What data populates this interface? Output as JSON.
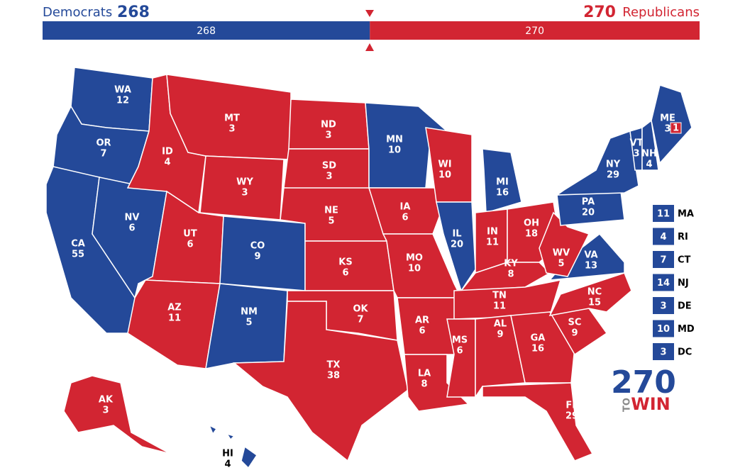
{
  "header": {
    "dem_label": "Democrats",
    "dem_total": 268,
    "rep_total": 270,
    "rep_label": "Republicans"
  },
  "colors": {
    "D": "#244999",
    "R": "#d22532"
  },
  "states": [
    {
      "abbr": "WA",
      "votes": 12,
      "party": "D"
    },
    {
      "abbr": "OR",
      "votes": 7,
      "party": "D"
    },
    {
      "abbr": "CA",
      "votes": 55,
      "party": "D"
    },
    {
      "abbr": "NV",
      "votes": 6,
      "party": "D"
    },
    {
      "abbr": "ID",
      "votes": 4,
      "party": "R"
    },
    {
      "abbr": "MT",
      "votes": 3,
      "party": "R"
    },
    {
      "abbr": "WY",
      "votes": 3,
      "party": "R"
    },
    {
      "abbr": "UT",
      "votes": 6,
      "party": "R"
    },
    {
      "abbr": "CO",
      "votes": 9,
      "party": "D"
    },
    {
      "abbr": "AZ",
      "votes": 11,
      "party": "R"
    },
    {
      "abbr": "NM",
      "votes": 5,
      "party": "D"
    },
    {
      "abbr": "ND",
      "votes": 3,
      "party": "R"
    },
    {
      "abbr": "SD",
      "votes": 3,
      "party": "R"
    },
    {
      "abbr": "NE",
      "votes": 5,
      "party": "R"
    },
    {
      "abbr": "KS",
      "votes": 6,
      "party": "R"
    },
    {
      "abbr": "OK",
      "votes": 7,
      "party": "R"
    },
    {
      "abbr": "TX",
      "votes": 38,
      "party": "R"
    },
    {
      "abbr": "MN",
      "votes": 10,
      "party": "D"
    },
    {
      "abbr": "IA",
      "votes": 6,
      "party": "R"
    },
    {
      "abbr": "MO",
      "votes": 10,
      "party": "R"
    },
    {
      "abbr": "AR",
      "votes": 6,
      "party": "R"
    },
    {
      "abbr": "LA",
      "votes": 8,
      "party": "R"
    },
    {
      "abbr": "WI",
      "votes": 10,
      "party": "R"
    },
    {
      "abbr": "IL",
      "votes": 20,
      "party": "D"
    },
    {
      "abbr": "MI",
      "votes": 16,
      "party": "D"
    },
    {
      "abbr": "IN",
      "votes": 11,
      "party": "R"
    },
    {
      "abbr": "OH",
      "votes": 18,
      "party": "R"
    },
    {
      "abbr": "KY",
      "votes": 8,
      "party": "R"
    },
    {
      "abbr": "TN",
      "votes": 11,
      "party": "R"
    },
    {
      "abbr": "MS",
      "votes": 6,
      "party": "R"
    },
    {
      "abbr": "AL",
      "votes": 9,
      "party": "R"
    },
    {
      "abbr": "GA",
      "votes": 16,
      "party": "R"
    },
    {
      "abbr": "FL",
      "votes": 29,
      "party": "R"
    },
    {
      "abbr": "SC",
      "votes": 9,
      "party": "R"
    },
    {
      "abbr": "NC",
      "votes": 15,
      "party": "R"
    },
    {
      "abbr": "VA",
      "votes": 13,
      "party": "D"
    },
    {
      "abbr": "WV",
      "votes": 5,
      "party": "R"
    },
    {
      "abbr": "PA",
      "votes": 20,
      "party": "D"
    },
    {
      "abbr": "NY",
      "votes": 29,
      "party": "D"
    },
    {
      "abbr": "VT",
      "votes": 3,
      "party": "D"
    },
    {
      "abbr": "NH",
      "votes": 4,
      "party": "D"
    },
    {
      "abbr": "ME",
      "votes": 3,
      "party": "D",
      "split": {
        "votes": 1,
        "party": "R"
      }
    },
    {
      "abbr": "AK",
      "votes": 3,
      "party": "R"
    },
    {
      "abbr": "HI",
      "votes": 4,
      "party": "D"
    }
  ],
  "small_states": [
    {
      "abbr": "MA",
      "votes": 11,
      "party": "D"
    },
    {
      "abbr": "RI",
      "votes": 4,
      "party": "D"
    },
    {
      "abbr": "CT",
      "votes": 7,
      "party": "D"
    },
    {
      "abbr": "NJ",
      "votes": 14,
      "party": "D"
    },
    {
      "abbr": "DE",
      "votes": 3,
      "party": "D"
    },
    {
      "abbr": "MD",
      "votes": 10,
      "party": "D"
    },
    {
      "abbr": "DC",
      "votes": 3,
      "party": "D"
    }
  ],
  "logo": {
    "number": "270",
    "to": "TO",
    "win": "WIN"
  }
}
